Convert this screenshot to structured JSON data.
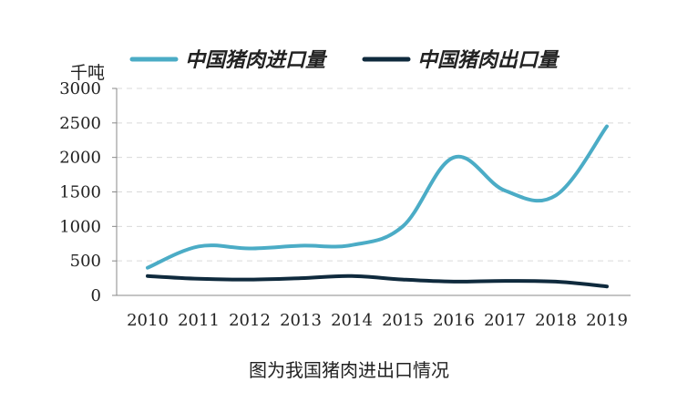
{
  "caption": "图为我国猪肉进出口情况",
  "chart_data": {
    "type": "line",
    "ylabel": "千吨",
    "ylim": [
      0,
      3000
    ],
    "yticks": [
      0,
      500,
      1000,
      1500,
      2000,
      2500,
      3000
    ],
    "categories": [
      "2010",
      "2011",
      "2012",
      "2013",
      "2014",
      "2015",
      "2016",
      "2017",
      "2018",
      "2019"
    ],
    "grid": true,
    "legend_position": "top",
    "series": [
      {
        "name": "中国猪肉进口量",
        "color": "#4bacc6",
        "values": [
          400,
          710,
          680,
          720,
          730,
          1000,
          2000,
          1520,
          1450,
          2450
        ]
      },
      {
        "name": "中国猪肉出口量",
        "color": "#0f2a3d",
        "values": [
          280,
          240,
          230,
          250,
          280,
          230,
          200,
          210,
          200,
          130
        ]
      }
    ]
  }
}
